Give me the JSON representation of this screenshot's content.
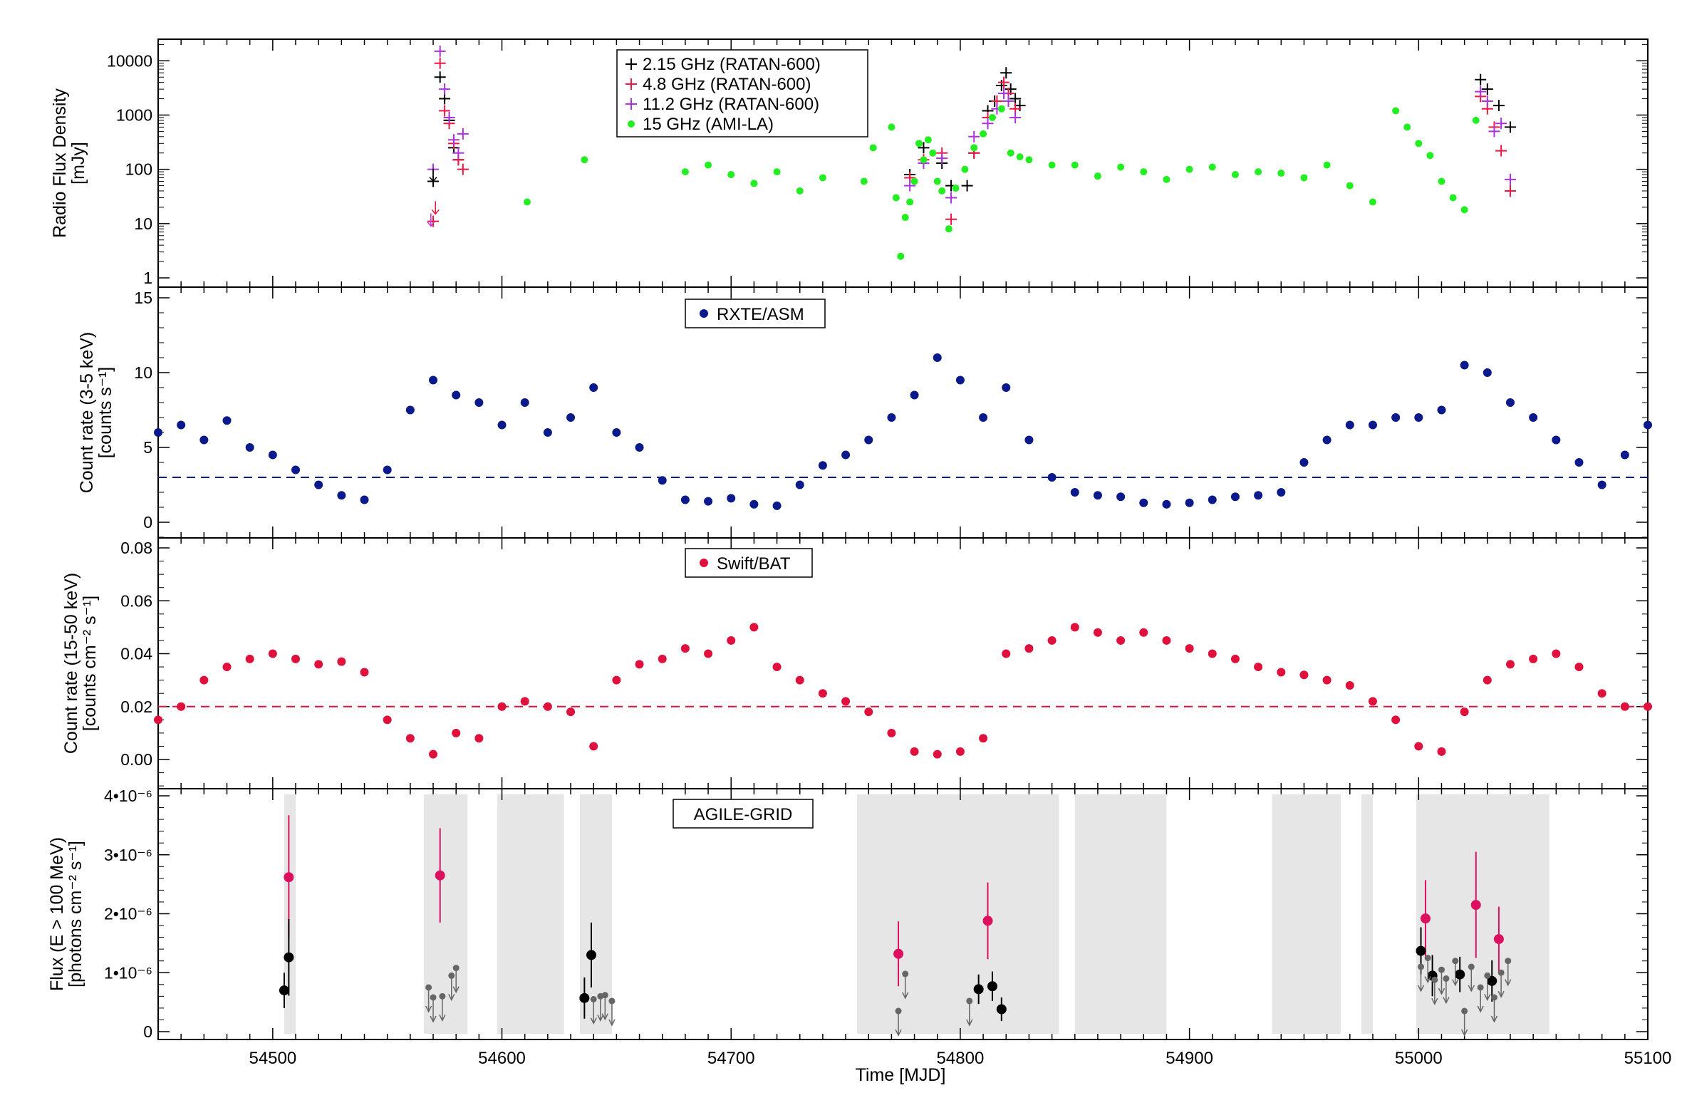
{
  "colors": {
    "radio_215": "#000000",
    "radio_48": "#ee1744",
    "radio_112": "#aa33dd",
    "ami": "#22ee22",
    "asm": "#0a1a8a",
    "bat": "#e0103c",
    "agile_detect": "#dd1060",
    "agile_black": "#000000",
    "agile_ul": "#666666",
    "shade": "#e6e6e6"
  },
  "xaxis": {
    "label": "Time  [MJD]",
    "ticks": [
      "54500",
      "54600",
      "54700",
      "54800",
      "54900",
      "55000",
      "55100"
    ],
    "range": [
      54450,
      55100
    ]
  },
  "chart_data": [
    {
      "id": "radio",
      "type": "scatter",
      "ylabel": "Radio Flux Density",
      "yunit": "[mJy]",
      "yscale": "log",
      "ylim": [
        1,
        25000
      ],
      "ytick_labels": [
        "1",
        "10",
        "100",
        "1000",
        "10000"
      ],
      "legend": [
        "2.15 GHz (RATAN-600)",
        "4.8 GHz (RATAN-600)",
        "11.2 GHz (RATAN-600)",
        "15 GHz (AMI-LA)"
      ],
      "series": [
        {
          "name": "2.15 GHz (RATAN-600)",
          "x": [
            54570,
            54573,
            54575,
            54577,
            54579,
            54581,
            54778,
            54784,
            54792,
            54796,
            54803,
            54806,
            54812,
            54815,
            54818,
            54820,
            54822,
            54824,
            54826,
            55027,
            55030,
            55035,
            55040
          ],
          "y": [
            60,
            5000,
            2000,
            800,
            250,
            150,
            80,
            250,
            130,
            50,
            50,
            200,
            1200,
            1800,
            3500,
            6000,
            3000,
            2000,
            1500,
            4500,
            3000,
            1500,
            600
          ]
        },
        {
          "name": "4.8 GHz (RATAN-600)",
          "x": [
            54570,
            54573,
            54575,
            54577,
            54579,
            54581,
            54583,
            54778,
            54784,
            54792,
            54796,
            54806,
            54812,
            54816,
            54819,
            54821,
            54824,
            55027,
            55030,
            55033,
            55036,
            55040
          ],
          "y": [
            11,
            9000,
            1200,
            700,
            300,
            150,
            100,
            70,
            150,
            200,
            12,
            200,
            900,
            1800,
            4000,
            2500,
            1300,
            2200,
            1300,
            600,
            220,
            40
          ]
        },
        {
          "name": "11.2 GHz (RATAN-600)",
          "x": [
            54570,
            54573,
            54575,
            54577,
            54579,
            54581,
            54583,
            54778,
            54784,
            54792,
            54796,
            54806,
            54812,
            54816,
            54819,
            54821,
            54824,
            55027,
            55030,
            55033,
            55036,
            55040
          ],
          "y": [
            100,
            15000,
            3000,
            900,
            350,
            200,
            450,
            50,
            130,
            160,
            30,
            400,
            700,
            1300,
            2500,
            1800,
            900,
            2700,
            1800,
            500,
            700,
            65
          ]
        },
        {
          "name": "15 GHz (AMI-LA)",
          "x": [
            54611,
            54636,
            54680,
            54690,
            54700,
            54710,
            54720,
            54730,
            54740,
            54758,
            54762,
            54770,
            54772,
            54774,
            54776,
            54778,
            54780,
            54782,
            54784,
            54786,
            54788,
            54790,
            54792,
            54795,
            54798,
            54802,
            54806,
            54810,
            54814,
            54818,
            54822,
            54826,
            54830,
            54840,
            54850,
            54860,
            54870,
            54880,
            54890,
            54900,
            54910,
            54920,
            54930,
            54940,
            54950,
            54960,
            54970,
            54980,
            54990,
            54995,
            55000,
            55005,
            55010,
            55015,
            55020,
            55025
          ],
          "y": [
            25,
            150,
            90,
            120,
            80,
            55,
            90,
            40,
            70,
            60,
            250,
            600,
            30,
            2.5,
            13,
            25,
            60,
            300,
            150,
            350,
            200,
            60,
            40,
            8,
            45,
            100,
            250,
            450,
            900,
            1300,
            200,
            170,
            150,
            120,
            120,
            75,
            110,
            90,
            65,
            100,
            110,
            80,
            90,
            85,
            70,
            120,
            50,
            25,
            1200,
            600,
            300,
            180,
            60,
            30,
            18,
            800
          ]
        }
      ]
    },
    {
      "id": "asm",
      "type": "scatter",
      "ylabel": "Count rate (3-5 keV)",
      "yunit": "[counts s⁻¹]",
      "ylim": [
        -1,
        15
      ],
      "ytick_labels": [
        "0",
        "5",
        "10",
        "15"
      ],
      "legend": [
        "RXTE/ASM"
      ],
      "threshold": 3,
      "series": [
        {
          "name": "RXTE/ASM",
          "x": [
            54450,
            54460,
            54470,
            54480,
            54490,
            54500,
            54510,
            54520,
            54530,
            54540,
            54550,
            54560,
            54570,
            54580,
            54590,
            54600,
            54610,
            54620,
            54630,
            54640,
            54650,
            54660,
            54670,
            54680,
            54690,
            54700,
            54710,
            54720,
            54730,
            54740,
            54750,
            54760,
            54770,
            54780,
            54790,
            54800,
            54810,
            54820,
            54830,
            54840,
            54850,
            54860,
            54870,
            54880,
            54890,
            54900,
            54910,
            54920,
            54930,
            54940,
            54950,
            54960,
            54970,
            54980,
            54990,
            55000,
            55010,
            55020,
            55030,
            55040,
            55050,
            55060,
            55070,
            55080,
            55090,
            55100
          ],
          "y": [
            6.0,
            6.5,
            5.5,
            6.8,
            5.0,
            4.5,
            3.5,
            2.5,
            1.8,
            1.5,
            3.5,
            7.5,
            9.5,
            8.5,
            8.0,
            6.5,
            8.0,
            6.0,
            7.0,
            9.0,
            6.0,
            5.0,
            2.8,
            1.5,
            1.4,
            1.6,
            1.2,
            1.1,
            2.5,
            3.8,
            4.5,
            5.5,
            7.0,
            8.5,
            11.0,
            9.5,
            7.0,
            9.0,
            5.5,
            3.0,
            2.0,
            1.8,
            1.7,
            1.3,
            1.2,
            1.3,
            1.5,
            1.7,
            1.8,
            2.0,
            4.0,
            5.5,
            6.5,
            6.5,
            7.0,
            7.0,
            7.5,
            10.5,
            10.0,
            8.0,
            7.0,
            5.5,
            4.0,
            2.5,
            4.5,
            6.5
          ]
        }
      ]
    },
    {
      "id": "bat",
      "type": "scatter",
      "ylabel": "Count rate (15-50 keV)",
      "yunit": "[counts cm⁻² s⁻¹]",
      "ylim": [
        -0.01,
        0.082
      ],
      "ytick_labels": [
        "0.00",
        "0.02",
        "0.04",
        "0.06",
        "0.08"
      ],
      "legend": [
        "Swift/BAT"
      ],
      "threshold": 0.02,
      "series": [
        {
          "name": "Swift/BAT",
          "x": [
            54450,
            54460,
            54470,
            54480,
            54490,
            54500,
            54510,
            54520,
            54530,
            54540,
            54550,
            54560,
            54570,
            54580,
            54590,
            54600,
            54610,
            54620,
            54630,
            54640,
            54650,
            54660,
            54670,
            54680,
            54690,
            54700,
            54710,
            54720,
            54730,
            54740,
            54750,
            54760,
            54770,
            54780,
            54790,
            54800,
            54810,
            54820,
            54830,
            54840,
            54850,
            54860,
            54870,
            54880,
            54890,
            54900,
            54910,
            54920,
            54930,
            54940,
            54950,
            54960,
            54970,
            54980,
            54990,
            55000,
            55010,
            55020,
            55030,
            55040,
            55050,
            55060,
            55070,
            55080,
            55090,
            55100
          ],
          "y": [
            0.015,
            0.02,
            0.03,
            0.035,
            0.038,
            0.04,
            0.038,
            0.036,
            0.037,
            0.033,
            0.015,
            0.008,
            0.002,
            0.01,
            0.008,
            0.02,
            0.022,
            0.02,
            0.018,
            0.005,
            0.03,
            0.036,
            0.038,
            0.042,
            0.04,
            0.045,
            0.05,
            0.035,
            0.03,
            0.025,
            0.022,
            0.018,
            0.01,
            0.003,
            0.002,
            0.003,
            0.008,
            0.04,
            0.042,
            0.045,
            0.05,
            0.048,
            0.045,
            0.048,
            0.045,
            0.042,
            0.04,
            0.038,
            0.035,
            0.033,
            0.032,
            0.03,
            0.028,
            0.022,
            0.015,
            0.005,
            0.003,
            0.018,
            0.03,
            0.036,
            0.038,
            0.04,
            0.035,
            0.025,
            0.02,
            0.02
          ]
        }
      ]
    },
    {
      "id": "agile",
      "type": "scatter",
      "ylabel": "Flux (E > 100 MeV)",
      "yunit": "[photons cm⁻² s⁻¹]",
      "ylim": [
        -1e-07,
        4e-06
      ],
      "ytick_labels": [
        "0",
        "1•10⁻⁶",
        "2•10⁻⁶",
        "3•10⁻⁶",
        "4•10⁻⁶"
      ],
      "legend": [
        "AGILE-GRID"
      ],
      "shaded_intervals": [
        [
          54505,
          54510
        ],
        [
          54566,
          54585
        ],
        [
          54598,
          54627
        ],
        [
          54634,
          54648
        ],
        [
          54755,
          54843
        ],
        [
          54850,
          54890
        ],
        [
          54936,
          54966
        ],
        [
          54975,
          54980
        ],
        [
          54999,
          55057
        ]
      ],
      "series": [
        {
          "name": "detection_high",
          "x": [
            54507,
            54573,
            54773,
            54812,
            55003,
            55025,
            55035
          ],
          "y": [
            2.62e-06,
            2.65e-06,
            1.32e-06,
            1.88e-06,
            1.92e-06,
            2.15e-06,
            1.57e-06
          ],
          "err": [
            1.05e-06,
            8e-07,
            5.5e-07,
            6.5e-07,
            6.5e-07,
            9e-07,
            5.5e-07
          ]
        },
        {
          "name": "detection_low",
          "x": [
            54505,
            54507,
            54636,
            54639,
            54808,
            54814,
            54818,
            55001,
            55006,
            55018,
            55032
          ],
          "y": [
            7e-07,
            1.26e-06,
            5.7e-07,
            1.3e-06,
            7.2e-07,
            7.7e-07,
            3.8e-07,
            1.37e-06,
            9.5e-07,
            9.7e-07,
            8.6e-07
          ],
          "err": [
            3e-07,
            6.5e-07,
            3.5e-07,
            5.5e-07,
            2.5e-07,
            2.5e-07,
            2e-07,
            4e-07,
            3.5e-07,
            3e-07,
            3.5e-07
          ]
        },
        {
          "name": "upper_limits",
          "x": [
            54568,
            54570,
            54574,
            54578,
            54580,
            54640,
            54643,
            54645,
            54648,
            54773,
            54776,
            54804,
            55001,
            55004,
            55007,
            55010,
            55012,
            55016,
            55020,
            55023,
            55027,
            55030,
            55033,
            55036,
            55039
          ],
          "y": [
            7.5e-07,
            5.8e-07,
            6e-07,
            9.5e-07,
            1.08e-06,
            5.5e-07,
            6e-07,
            6.2e-07,
            5.2e-07,
            3.5e-07,
            9.8e-07,
            5.2e-07,
            1.1e-06,
            1.25e-06,
            8.8e-07,
            1.05e-06,
            9e-07,
            1.2e-06,
            3.5e-07,
            1.1e-06,
            7.5e-07,
            9.5e-07,
            5.8e-07,
            1e-06,
            1.2e-06
          ]
        }
      ]
    }
  ]
}
